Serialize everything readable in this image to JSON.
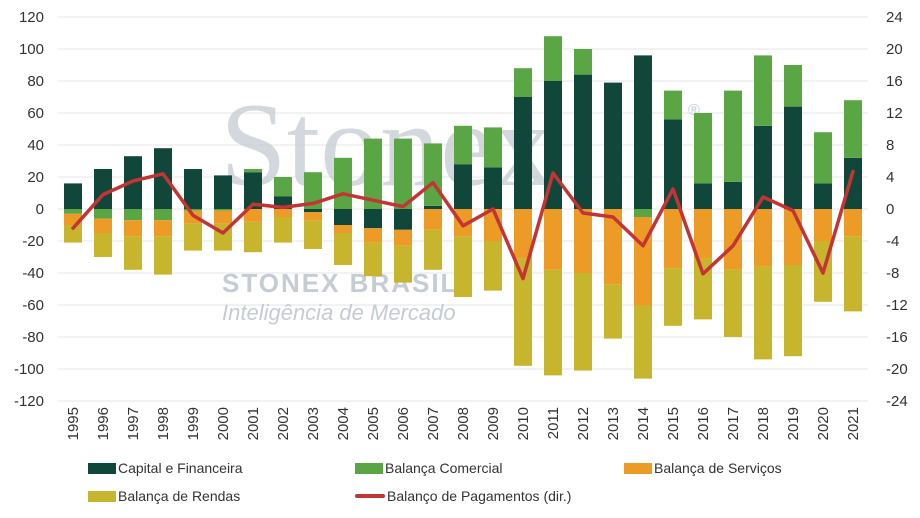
{
  "watermark": {
    "logo_text": "Stonex",
    "registered": "®",
    "brand": "STONEX BRASIL",
    "tagline": "Inteligência de Mercado"
  },
  "legend": {
    "capital": "Capital e Financeira",
    "comercial": "Balança Comercial",
    "servicos": "Balança de Serviços",
    "rendas": "Balança de Rendas",
    "bp": "Balanço de Pagamentos (dir.)"
  },
  "colors": {
    "capital": "#11473a",
    "comercial": "#5ba644",
    "servicos": "#eb9b26",
    "rendas": "#c8b52e",
    "bp": "#c33434",
    "grid": "#e4e4e4"
  },
  "chart_data": {
    "type": "bar",
    "stacked": true,
    "categories": [
      "1995",
      "1996",
      "1997",
      "1998",
      "1999",
      "2000",
      "2001",
      "2002",
      "2003",
      "2004",
      "2005",
      "2006",
      "2007",
      "2008",
      "2009",
      "2010",
      "2011",
      "2012",
      "2013",
      "2014",
      "2015",
      "2016",
      "2017",
      "2018",
      "2019",
      "2020",
      "2021"
    ],
    "y_left": {
      "min": -120,
      "max": 120,
      "step": 20,
      "ticks": [
        "120",
        "100",
        "80",
        "60",
        "40",
        "20",
        "0",
        "-20",
        "-40",
        "-60",
        "-80",
        "-100",
        "-120"
      ]
    },
    "y_right": {
      "min": -24,
      "max": 24,
      "step": 4,
      "ticks": [
        "24",
        "20",
        "16",
        "12",
        "8",
        "4",
        "0",
        "-4",
        "-8",
        "-12",
        "-16",
        "-20",
        "-24"
      ]
    },
    "series": [
      {
        "name": "Capital e Financeira",
        "key": "capital",
        "axis": "left",
        "values": [
          16,
          25,
          33,
          38,
          25,
          21,
          23,
          8,
          -2,
          -10,
          -12,
          -13,
          2,
          28,
          26,
          70,
          80,
          84,
          79,
          96,
          56,
          16,
          17,
          52,
          64,
          16,
          32
        ]
      },
      {
        "name": "Balança Comercial",
        "key": "comercial",
        "axis": "left",
        "values": [
          -3,
          -6,
          -7,
          -7,
          -1,
          -1,
          2,
          12,
          23,
          32,
          44,
          44,
          39,
          24,
          25,
          18,
          28,
          16,
          0,
          -5,
          18,
          44,
          57,
          44,
          26,
          32,
          36
        ]
      },
      {
        "name": "Balança de Serviços",
        "key": "servicos",
        "axis": "left",
        "values": [
          -7,
          -9,
          -10,
          -10,
          -8,
          -8,
          -8,
          -5,
          -5,
          -5,
          -9,
          -10,
          -13,
          -17,
          -20,
          -31,
          -38,
          -40,
          -47,
          -55,
          -37,
          -31,
          -38,
          -36,
          -35,
          -20,
          -17
        ]
      },
      {
        "name": "Balança de Rendas",
        "key": "rendas",
        "axis": "left",
        "values": [
          -11,
          -15,
          -21,
          -24,
          -17,
          -17,
          -19,
          -16,
          -18,
          -20,
          -21,
          -23,
          -25,
          -38,
          -31,
          -67,
          -66,
          -61,
          -34,
          -46,
          -36,
          -38,
          -42,
          -58,
          -57,
          -38,
          -47
        ]
      },
      {
        "name": "Balanço de Pagamentos (dir.)",
        "key": "bp",
        "axis": "right",
        "type": "line",
        "values": [
          -2.4,
          1.8,
          3.5,
          4.4,
          -0.8,
          -3.0,
          0.6,
          0.2,
          0.7,
          1.9,
          1.1,
          0.3,
          3.3,
          -2.1,
          0.0,
          -8.7,
          4.5,
          -0.5,
          -1.0,
          -4.6,
          2.5,
          -8.1,
          -4.6,
          1.5,
          -0.2,
          -8.0,
          4.7
        ]
      }
    ]
  }
}
